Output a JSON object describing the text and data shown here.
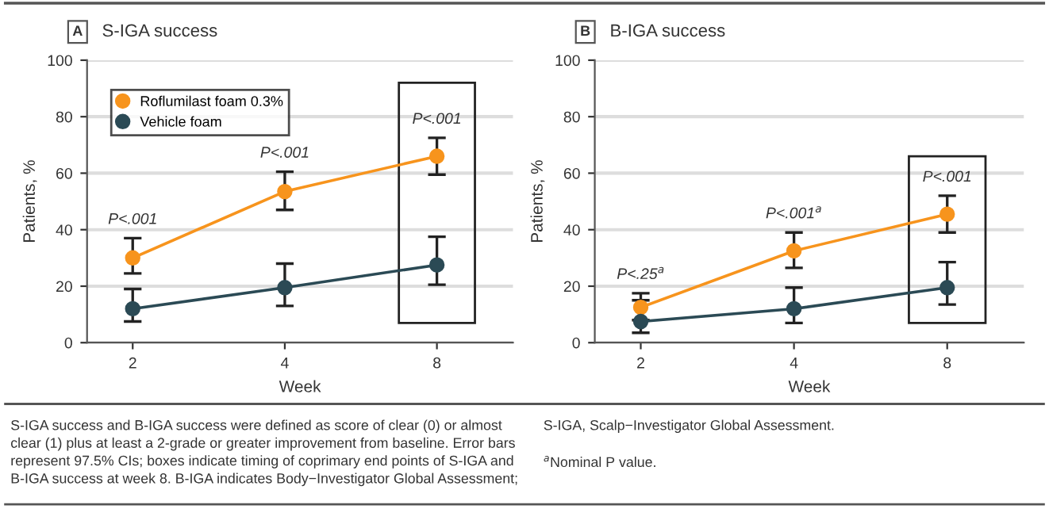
{
  "chart_data": [
    {
      "type": "line",
      "title": "S-IGA success",
      "xlabel": "Week",
      "ylabel": "Patients, %",
      "categories": [
        "2",
        "4",
        "8"
      ],
      "ylim": [
        0,
        100
      ],
      "yticks": [
        0,
        20,
        40,
        60,
        80,
        100
      ],
      "grid": "y",
      "legend": "top left",
      "marker": "circle",
      "series": [
        {
          "name": "Roflumilast foam 0.3%",
          "color": "#f7941d",
          "values": [
            30,
            53.5,
            66
          ],
          "errors": [
            [
              24.5,
              37
            ],
            [
              47,
              60.5
            ],
            [
              59.5,
              72.5
            ]
          ]
        },
        {
          "name": "Vehicle foam",
          "color": "#2b4a55",
          "values": [
            12,
            19.5,
            27.5
          ],
          "errors": [
            [
              7.5,
              19
            ],
            [
              13,
              28
            ],
            [
              20.5,
              37.5
            ]
          ]
        }
      ],
      "annotations": [
        "A",
        {
          "text": "P<.001",
          "x": "2",
          "y": 37
        },
        {
          "text": "P<.001",
          "x": "4",
          "y": 60.5
        },
        {
          "text": "P<.001",
          "x": "8",
          "y": 72.5
        },
        "S-IGA success and B-IGA success were defined as score of clear (0) or almost\nclear (1) plus at least a 2-grade or greater improvement from baseline. Error bars\nrepresent 97.5% CIs; boxes indicate timing of coprimary end points of S-IGA and\nB-IGA success at week 8. B-IGA indicates Body−Investigator Global Assessment;"
      ]
    },
    {
      "type": "line",
      "title": "B-IGA success",
      "xlabel": "Week",
      "ylabel": "Patients, %",
      "categories": [
        "2",
        "4",
        "8"
      ],
      "ylim": [
        0,
        100
      ],
      "yticks": [
        0,
        20,
        40,
        60,
        80,
        100
      ],
      "grid": "y",
      "marker": "circle",
      "series": [
        {
          "color": "#f7941d",
          "values": [
            12.5,
            32.5,
            45.5
          ],
          "errors": [
            [
              8,
              17.5
            ],
            [
              26.5,
              39
            ],
            [
              39,
              52
            ]
          ]
        },
        {
          "color": "#2b4a55",
          "values": [
            7.5,
            12,
            19.5
          ],
          "errors": [
            [
              3.5,
              15
            ],
            [
              7,
              19.5
            ],
            [
              13.5,
              28.5
            ]
          ]
        }
      ],
      "annotations": [
        "B",
        {
          "text": "P<.25$^{a}$",
          "x": "2",
          "y": 17.5
        },
        {
          "text": "P<.001$^{a}$",
          "x": "4",
          "y": 39
        },
        {
          "text": "P<.001",
          "x": "8",
          "y": 52
        },
        "S-IGA, Scalp−Investigator Global Assessment.",
        "$^{a}$Nominal P value."
      ]
    }
  ]
}
